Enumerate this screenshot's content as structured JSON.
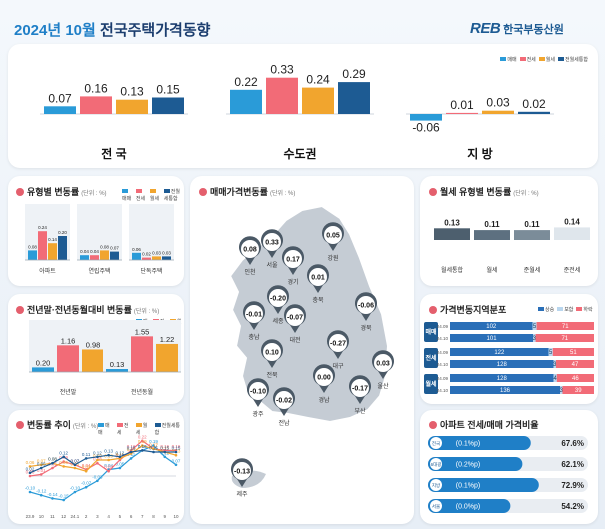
{
  "header": {
    "title_year": "2024년",
    "title_month": "10월",
    "title_rest": "전국주택가격동향",
    "logo_mark": "REB",
    "logo_text": "한국부동산원"
  },
  "colors": {
    "sale": "#2a9bd8",
    "jeonse": "#f26b77",
    "wolse": "#f1a52e",
    "combined": "#1d5b93"
  },
  "legend": [
    "매매",
    "전세",
    "월세",
    "전월세통합"
  ],
  "chart_data": [
    {
      "type": "bar",
      "id": "regional_summary",
      "categories": [
        "전 국",
        "수도권",
        "지 방"
      ],
      "series": [
        {
          "name": "매매",
          "values": [
            0.07,
            0.22,
            -0.06
          ]
        },
        {
          "name": "전세",
          "values": [
            0.16,
            0.33,
            0.01
          ]
        },
        {
          "name": "월세",
          "values": [
            0.13,
            0.24,
            0.03
          ]
        },
        {
          "name": "전월세통합",
          "values": [
            0.15,
            0.29,
            0.02
          ]
        }
      ]
    },
    {
      "type": "bar",
      "id": "by_type",
      "title": "유형별 변동률",
      "unit": "(단위 : %)",
      "categories": [
        "아파트",
        "연립주택",
        "단독주택"
      ],
      "series": [
        {
          "name": "매매",
          "values": [
            0.08,
            0.04,
            0.06
          ]
        },
        {
          "name": "전세",
          "values": [
            0.24,
            0.04,
            0.02
          ]
        },
        {
          "name": "월세",
          "values": [
            0.14,
            0.08,
            0.03
          ]
        },
        {
          "name": "전월세통합",
          "values": [
            0.2,
            0.07,
            0.03
          ]
        }
      ]
    },
    {
      "type": "bar",
      "id": "yoy",
      "title": "전년말·전년동월대비 변동률",
      "unit": "(단위 : %)",
      "categories": [
        "전년말",
        "전년동월"
      ],
      "series": [
        {
          "name": "매매",
          "values": [
            0.2,
            0.13
          ]
        },
        {
          "name": "전세",
          "values": [
            1.16,
            1.55
          ]
        },
        {
          "name": "월세",
          "values": [
            0.98,
            1.22
          ]
        }
      ]
    },
    {
      "type": "line",
      "id": "trend",
      "title": "변동률 추이",
      "unit": "(단위 : %)",
      "x": [
        "23.9",
        "10",
        "11",
        "12",
        "24.1",
        "2",
        "3",
        "4",
        "5",
        "6",
        "7",
        "8",
        "9",
        "10"
      ],
      "series": [
        {
          "name": "매매",
          "values": [
            -0.1,
            -0.12,
            -0.14,
            -0.15,
            -0.1,
            -0.07,
            -0.03,
            0.04,
            0.05,
            0.11,
            0.16,
            0.19,
            0.12,
            0.07
          ]
        },
        {
          "name": "전세",
          "values": [
            0.0,
            0.01,
            0.05,
            0.09,
            0.07,
            0.04,
            0.08,
            0.03,
            0.1,
            0.16,
            0.22,
            0.17,
            0.16,
            0.16
          ]
        },
        {
          "name": "월세",
          "values": [
            0.06,
            0.07,
            0.08,
            0.06,
            0.05,
            0.03,
            0.1,
            0.1,
            0.11,
            0.14,
            0.19,
            0.17,
            0.15,
            0.13
          ]
        },
        {
          "name": "전월세통합",
          "values": [
            0.02,
            0.05,
            0.08,
            0.12,
            0.07,
            0.11,
            0.12,
            0.13,
            0.12,
            0.15,
            0.16,
            0.15,
            0.15,
            0.15
          ]
        }
      ]
    },
    {
      "type": "bar",
      "id": "wolse_type",
      "title": "월세 유형별 변동률",
      "unit": "(단위 : %)",
      "categories": [
        "월세통합",
        "월세",
        "준월세",
        "준전세"
      ],
      "values": [
        0.13,
        0.11,
        0.11,
        0.14
      ]
    },
    {
      "type": "bar",
      "id": "distribution",
      "title": "가격변동지역분포",
      "legend": [
        "상승",
        "보합",
        "하락"
      ],
      "groups": [
        {
          "name": "매매",
          "rows": [
            {
              "period": "24.09",
              "values": [
                102,
                5,
                71
              ]
            },
            {
              "period": "24.10",
              "values": [
                101,
                3,
                71
              ]
            }
          ]
        },
        {
          "name": "전세",
          "rows": [
            {
              "period": "24.09",
              "values": [
                122,
                5,
                51
              ]
            },
            {
              "period": "24.10",
              "values": [
                128,
                3,
                47
              ]
            }
          ]
        },
        {
          "name": "월세",
          "rows": [
            {
              "period": "24.09",
              "values": [
                128,
                4,
                46
              ]
            },
            {
              "period": "24.10",
              "values": [
                136,
                3,
                39
              ]
            }
          ]
        }
      ]
    },
    {
      "type": "bar",
      "id": "ratio",
      "title": "아파트 전세/매매 가격비율",
      "categories": [
        "전국",
        "6대광",
        "지방",
        "서울"
      ],
      "changes": [
        "(0.1%p)",
        "(0.2%p)",
        "(0.1%p)",
        "(0.0%p)"
      ],
      "values": [
        67.6,
        62.1,
        72.9,
        54.2
      ],
      "value_labels": [
        "67.6%",
        "62.1%",
        "72.9%",
        "54.2%"
      ]
    },
    {
      "type": "map",
      "id": "sale_map",
      "title": "매매가격변동률",
      "unit": "(단위 : %)",
      "regions": [
        {
          "name": "인천",
          "value": "0.08"
        },
        {
          "name": "서울",
          "value": "0.33"
        },
        {
          "name": "경기",
          "value": "0.17"
        },
        {
          "name": "강원",
          "value": "0.05"
        },
        {
          "name": "충북",
          "value": "0.01"
        },
        {
          "name": "세종",
          "value": "-0.20"
        },
        {
          "name": "충남",
          "value": "-0.01"
        },
        {
          "name": "대전",
          "value": "-0.07"
        },
        {
          "name": "경북",
          "value": "-0.06"
        },
        {
          "name": "대구",
          "value": "-0.27"
        },
        {
          "name": "전북",
          "value": "0.10"
        },
        {
          "name": "광주",
          "value": "-0.10"
        },
        {
          "name": "전남",
          "value": "-0.02"
        },
        {
          "name": "경남",
          "value": "0.00"
        },
        {
          "name": "울산",
          "value": "0.03"
        },
        {
          "name": "부산",
          "value": "-0.17"
        },
        {
          "name": "제주",
          "value": "-0.13"
        }
      ]
    }
  ]
}
